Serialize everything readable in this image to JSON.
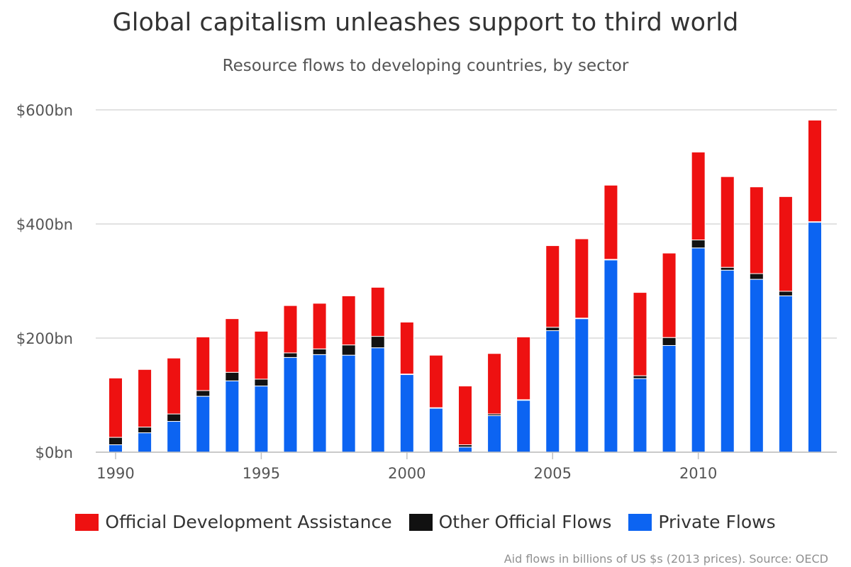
{
  "title": "Global capitalism unleashes support to third world",
  "subtitle": "Resource flows to developing countries, by sector",
  "credits": "Aid flows in billions of US $s (2013 prices). Source: OECD",
  "legend": [
    {
      "name": "Official Development Assistance",
      "color": "#ee1111"
    },
    {
      "name": "Other Official Flows",
      "color": "#111111"
    },
    {
      "name": "Private Flows",
      "color": "#0c64f2"
    }
  ],
  "chart_data": {
    "type": "bar",
    "stacked": true,
    "categories": [
      1990,
      1991,
      1992,
      1993,
      1994,
      1995,
      1996,
      1997,
      1998,
      1999,
      2000,
      2001,
      2002,
      2003,
      2004,
      2005,
      2006,
      2007,
      2008,
      2009,
      2010,
      2011,
      2012,
      2013,
      2014
    ],
    "x_tick_labels": [
      "1990",
      "1995",
      "2000",
      "2005",
      "2010"
    ],
    "y_tick_labels": [
      "$0bn",
      "$200bn",
      "$400bn",
      "$600bn"
    ],
    "y_ticks": [
      0,
      200,
      400,
      600
    ],
    "ylim": [
      0,
      600
    ],
    "grid": true,
    "legend_position": "bottom",
    "series": [
      {
        "name": "Private Flows",
        "color": "#0c64f2",
        "values": [
          13,
          34,
          54,
          98,
          125,
          116,
          166,
          171,
          170,
          183,
          136,
          77,
          9,
          64,
          91,
          213,
          234,
          337,
          129,
          187,
          358,
          319,
          303,
          274,
          403
        ]
      },
      {
        "name": "Other Official Flows",
        "color": "#111111",
        "values": [
          13,
          10,
          13,
          10,
          15,
          12,
          8,
          10,
          18,
          20,
          1,
          1,
          4,
          3,
          1,
          6,
          1,
          1,
          5,
          14,
          14,
          5,
          10,
          8,
          1
        ]
      },
      {
        "name": "Official Development Assistance",
        "color": "#ee1111",
        "values": [
          104,
          101,
          98,
          94,
          94,
          84,
          83,
          80,
          86,
          86,
          91,
          92,
          103,
          106,
          110,
          143,
          139,
          130,
          146,
          148,
          154,
          159,
          152,
          166,
          178
        ]
      }
    ]
  }
}
